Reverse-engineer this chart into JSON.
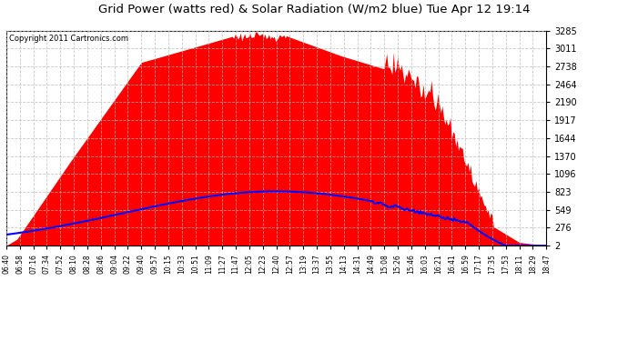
{
  "title": "Grid Power (watts red) & Solar Radiation (W/m2 blue) Tue Apr 12 19:14",
  "copyright": "Copyright 2011 Cartronics.com",
  "background_color": "#ffffff",
  "plot_bg_color": "#ffffff",
  "grid_color": "#bbbbbb",
  "yticks": [
    2.3,
    275.8,
    549.3,
    822.9,
    1096.4,
    1369.9,
    1643.5,
    1917.0,
    2190.5,
    2464.0,
    2737.6,
    3011.1,
    3284.6
  ],
  "ymin": 2.3,
  "ymax": 3284.6,
  "x_labels": [
    "06:40",
    "06:58",
    "07:16",
    "07:34",
    "07:52",
    "08:10",
    "08:28",
    "08:46",
    "09:04",
    "09:22",
    "09:40",
    "09:57",
    "10:15",
    "10:33",
    "10:51",
    "11:09",
    "11:27",
    "11:47",
    "12:05",
    "12:23",
    "12:40",
    "12:57",
    "13:19",
    "13:37",
    "13:55",
    "14:13",
    "14:31",
    "14:49",
    "15:08",
    "15:26",
    "15:46",
    "16:03",
    "16:21",
    "16:41",
    "16:59",
    "17:17",
    "17:35",
    "17:53",
    "18:11",
    "18:29",
    "18:47"
  ],
  "red_color": "#ff0000",
  "blue_color": "#0000ff",
  "fill_alpha": 1.0
}
